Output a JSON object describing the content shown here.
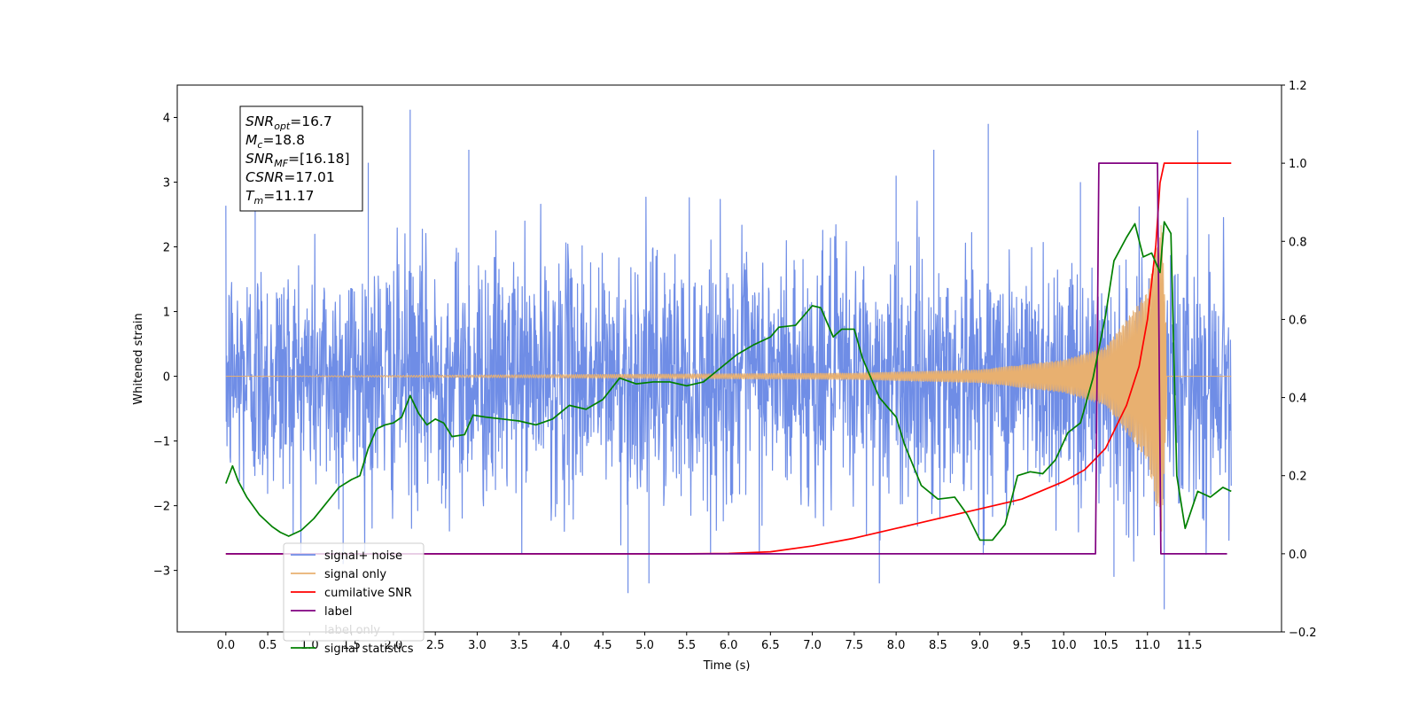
{
  "chart_data": {
    "type": "line",
    "title": "",
    "xlabel": "Time (s)",
    "ylabel": "Whitened strain",
    "xlim": [
      -0.58,
      12.6
    ],
    "ylim_left": [
      -3.95,
      4.5
    ],
    "ylim_right": [
      -0.2,
      1.2
    ],
    "x_ticks": [
      0.0,
      0.5,
      1.0,
      1.5,
      2.0,
      2.5,
      3.0,
      3.5,
      4.0,
      4.5,
      5.0,
      5.5,
      6.0,
      6.5,
      7.0,
      7.5,
      8.0,
      8.5,
      9.0,
      9.5,
      10.0,
      10.5,
      11.0,
      11.5
    ],
    "x_tick_labels": [
      "0.0",
      "0.5",
      "1.0",
      "1.5",
      "2.0",
      "2.5",
      "3.0",
      "3.5",
      "4.0",
      "4.5",
      "5.0",
      "5.5",
      "6.0",
      "6.5",
      "7.0",
      "7.5",
      "8.0",
      "8.5",
      "9.0",
      "9.5",
      "10.0",
      "10.5",
      "11.0",
      "11.5"
    ],
    "y_ticks_left": [
      -3,
      -2,
      -1,
      0,
      1,
      2,
      3,
      4
    ],
    "y_tick_labels_left": [
      "−3",
      "−2",
      "−1",
      "0",
      "1",
      "2",
      "3",
      "4"
    ],
    "y_ticks_right": [
      -0.2,
      0.0,
      0.2,
      0.4,
      0.6,
      0.8,
      1.0,
      1.2
    ],
    "y_tick_labels_right": [
      "−0.2",
      "0.0",
      "0.2",
      "0.4",
      "0.6",
      "0.8",
      "1.0",
      "1.2"
    ],
    "grid": false,
    "legend_placement": "lower-left",
    "annotation": [
      {
        "base": "SNR",
        "sub": "opt",
        "rest": "=16.7"
      },
      {
        "base": "M",
        "sub": "c",
        "rest": "=18.8"
      },
      {
        "base": "SNR",
        "sub": "MF",
        "rest": "=[16.18]"
      },
      {
        "base": "CSNR",
        "sub": "",
        "rest": "=17.01"
      },
      {
        "base": "T",
        "sub": "m",
        "rest": "=11.17"
      }
    ],
    "series": [
      {
        "name": "signal+ noise",
        "axis": "left",
        "color": "#6f8de6",
        "kind": "noise",
        "x_range": [
          0.0,
          12.0
        ],
        "samples": 2600,
        "std": 0.95,
        "signal_added": true,
        "peaks": [
          {
            "x": 2.2,
            "y": 4.12
          },
          {
            "x": 2.9,
            "y": 3.5
          },
          {
            "x": 9.1,
            "y": 3.9
          },
          {
            "x": 8.45,
            "y": 3.5
          },
          {
            "x": 11.6,
            "y": 3.8
          },
          {
            "x": 4.8,
            "y": -3.35
          },
          {
            "x": 5.05,
            "y": -3.2
          },
          {
            "x": 11.2,
            "y": -3.6
          },
          {
            "x": 7.8,
            "y": -3.2
          },
          {
            "x": 10.6,
            "y": -3.1
          },
          {
            "x": 1.7,
            "y": 3.3
          },
          {
            "x": 0.35,
            "y": 2.8
          },
          {
            "x": 8.0,
            "y": 3.1
          },
          {
            "x": 10.2,
            "y": 3.0
          },
          {
            "x": 1.4,
            "y": -2.9
          }
        ]
      },
      {
        "name": "signal only",
        "axis": "left",
        "color": "#e8b070",
        "kind": "chirp",
        "x_range": [
          0.0,
          12.0
        ],
        "merger_time": 11.17,
        "peak_amplitude": 2.4,
        "freq_start_hz": 22,
        "freq_merger_hz": 70,
        "amplitude_at": [
          {
            "x": 0.0,
            "y": 0.0
          },
          {
            "x": 7.5,
            "y": 0.05
          },
          {
            "x": 9.0,
            "y": 0.1
          },
          {
            "x": 10.0,
            "y": 0.25
          },
          {
            "x": 10.5,
            "y": 0.45
          },
          {
            "x": 11.0,
            "y": 1.3
          },
          {
            "x": 11.17,
            "y": 2.4
          },
          {
            "x": 11.25,
            "y": 0.0
          },
          {
            "x": 12.0,
            "y": 0.0
          }
        ]
      },
      {
        "name": "cumilative SNR",
        "axis": "right",
        "color": "#ff0000",
        "points": [
          [
            0.0,
            0.0
          ],
          [
            5.5,
            0.0
          ],
          [
            6.0,
            0.001
          ],
          [
            6.5,
            0.005
          ],
          [
            7.0,
            0.02
          ],
          [
            7.5,
            0.04
          ],
          [
            8.0,
            0.065
          ],
          [
            8.5,
            0.09
          ],
          [
            9.0,
            0.115
          ],
          [
            9.5,
            0.14
          ],
          [
            10.0,
            0.185
          ],
          [
            10.25,
            0.215
          ],
          [
            10.5,
            0.27
          ],
          [
            10.75,
            0.38
          ],
          [
            10.9,
            0.48
          ],
          [
            11.0,
            0.6
          ],
          [
            11.1,
            0.79
          ],
          [
            11.15,
            0.95
          ],
          [
            11.2,
            1.0
          ],
          [
            12.0,
            1.0
          ]
        ]
      },
      {
        "name": "label",
        "axis": "right",
        "color": "#800080",
        "points": [
          [
            0.0,
            0.0
          ],
          [
            10.38,
            0.0
          ],
          [
            10.42,
            1.0
          ],
          [
            11.12,
            1.0
          ],
          [
            11.16,
            0.0
          ],
          [
            11.95,
            0.0
          ]
        ]
      },
      {
        "name": "label only",
        "axis": "right",
        "color": "#d9d9d9",
        "points": []
      },
      {
        "name": "signal statistics",
        "axis": "right",
        "color": "#008000",
        "points": [
          [
            0.0,
            0.18
          ],
          [
            0.08,
            0.225
          ],
          [
            0.15,
            0.185
          ],
          [
            0.25,
            0.145
          ],
          [
            0.4,
            0.1
          ],
          [
            0.55,
            0.07
          ],
          [
            0.65,
            0.055
          ],
          [
            0.75,
            0.045
          ],
          [
            0.9,
            0.06
          ],
          [
            1.05,
            0.09
          ],
          [
            1.2,
            0.13
          ],
          [
            1.35,
            0.17
          ],
          [
            1.5,
            0.19
          ],
          [
            1.6,
            0.2
          ],
          [
            1.7,
            0.27
          ],
          [
            1.8,
            0.32
          ],
          [
            1.9,
            0.33
          ],
          [
            2.0,
            0.335
          ],
          [
            2.1,
            0.35
          ],
          [
            2.2,
            0.405
          ],
          [
            2.3,
            0.36
          ],
          [
            2.4,
            0.33
          ],
          [
            2.5,
            0.345
          ],
          [
            2.6,
            0.335
          ],
          [
            2.7,
            0.3
          ],
          [
            2.85,
            0.305
          ],
          [
            2.95,
            0.355
          ],
          [
            3.1,
            0.35
          ],
          [
            3.3,
            0.345
          ],
          [
            3.5,
            0.34
          ],
          [
            3.7,
            0.33
          ],
          [
            3.9,
            0.345
          ],
          [
            4.1,
            0.38
          ],
          [
            4.3,
            0.37
          ],
          [
            4.5,
            0.395
          ],
          [
            4.7,
            0.45
          ],
          [
            4.9,
            0.435
          ],
          [
            5.1,
            0.44
          ],
          [
            5.3,
            0.44
          ],
          [
            5.5,
            0.43
          ],
          [
            5.7,
            0.44
          ],
          [
            5.9,
            0.475
          ],
          [
            6.1,
            0.51
          ],
          [
            6.3,
            0.535
          ],
          [
            6.5,
            0.555
          ],
          [
            6.6,
            0.58
          ],
          [
            6.8,
            0.585
          ],
          [
            7.0,
            0.635
          ],
          [
            7.1,
            0.63
          ],
          [
            7.25,
            0.555
          ],
          [
            7.35,
            0.575
          ],
          [
            7.5,
            0.575
          ],
          [
            7.6,
            0.5
          ],
          [
            7.8,
            0.4
          ],
          [
            8.0,
            0.35
          ],
          [
            8.1,
            0.28
          ],
          [
            8.3,
            0.175
          ],
          [
            8.5,
            0.14
          ],
          [
            8.7,
            0.145
          ],
          [
            8.85,
            0.1
          ],
          [
            9.0,
            0.035
          ],
          [
            9.15,
            0.035
          ],
          [
            9.3,
            0.075
          ],
          [
            9.45,
            0.2
          ],
          [
            9.6,
            0.21
          ],
          [
            9.75,
            0.205
          ],
          [
            9.9,
            0.24
          ],
          [
            10.05,
            0.31
          ],
          [
            10.2,
            0.335
          ],
          [
            10.35,
            0.45
          ],
          [
            10.5,
            0.61
          ],
          [
            10.6,
            0.75
          ],
          [
            10.75,
            0.81
          ],
          [
            10.85,
            0.845
          ],
          [
            10.95,
            0.76
          ],
          [
            11.05,
            0.77
          ],
          [
            11.15,
            0.72
          ],
          [
            11.2,
            0.85
          ],
          [
            11.28,
            0.82
          ],
          [
            11.35,
            0.2
          ],
          [
            11.45,
            0.065
          ],
          [
            11.6,
            0.16
          ],
          [
            11.75,
            0.145
          ],
          [
            11.9,
            0.17
          ],
          [
            12.0,
            0.16
          ]
        ]
      }
    ]
  }
}
